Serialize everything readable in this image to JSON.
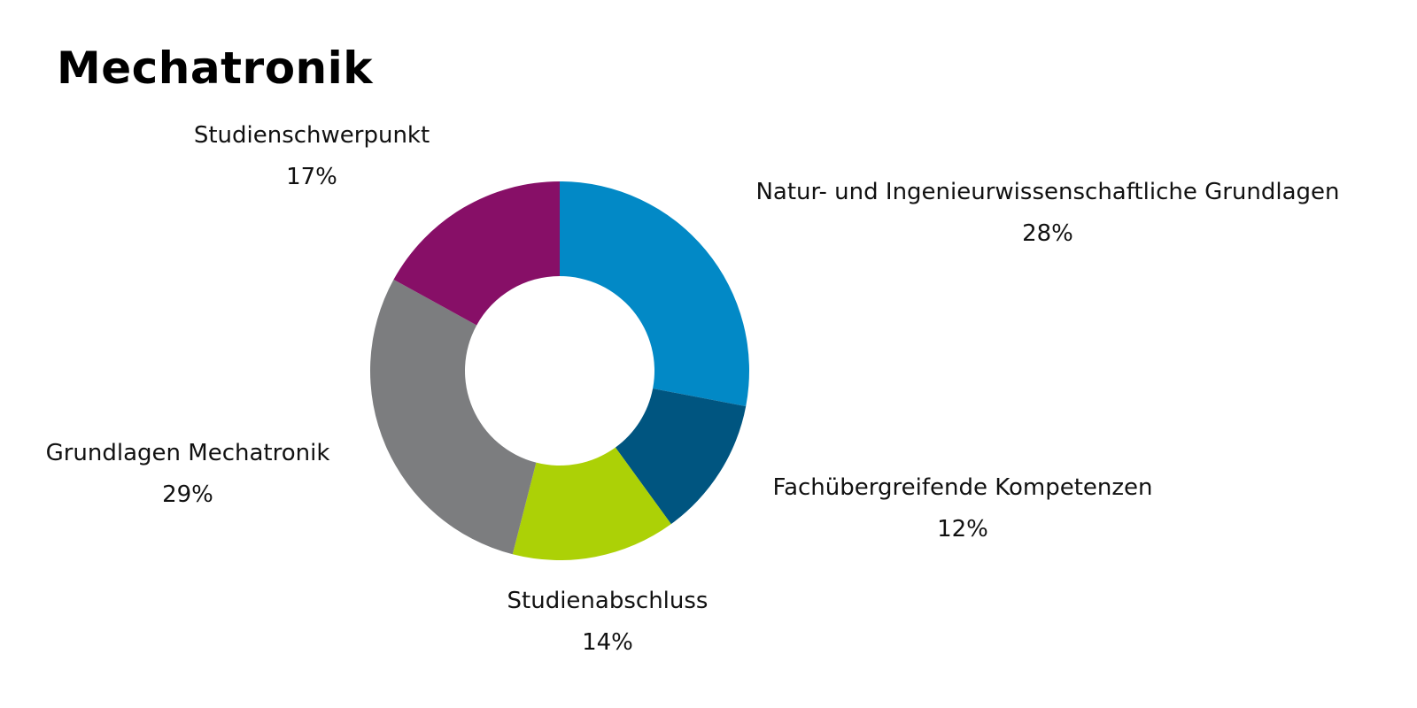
{
  "chart_data": {
    "type": "pie",
    "subtype": "donut",
    "title": "Mechatronik",
    "slices": [
      {
        "label": "Natur- und Ingenieurwissenschaftliche Grundlagen",
        "value": 28,
        "value_label": "28%",
        "color": "#0289c6"
      },
      {
        "label": "Fachübergreifende Kompetenzen",
        "value": 12,
        "value_label": "12%",
        "color": "#005580"
      },
      {
        "label": "Studienabschluss",
        "value": 14,
        "value_label": "14%",
        "color": "#acd106"
      },
      {
        "label": "Grundlagen Mechatronik",
        "value": 29,
        "value_label": "29%",
        "color": "#7c7d7f"
      },
      {
        "label": "Studienschwerpunkt",
        "value": 17,
        "value_label": "17%",
        "color": "#870f67"
      }
    ],
    "start_angle_deg": 0,
    "direction": "clockwise",
    "legend": "none"
  }
}
